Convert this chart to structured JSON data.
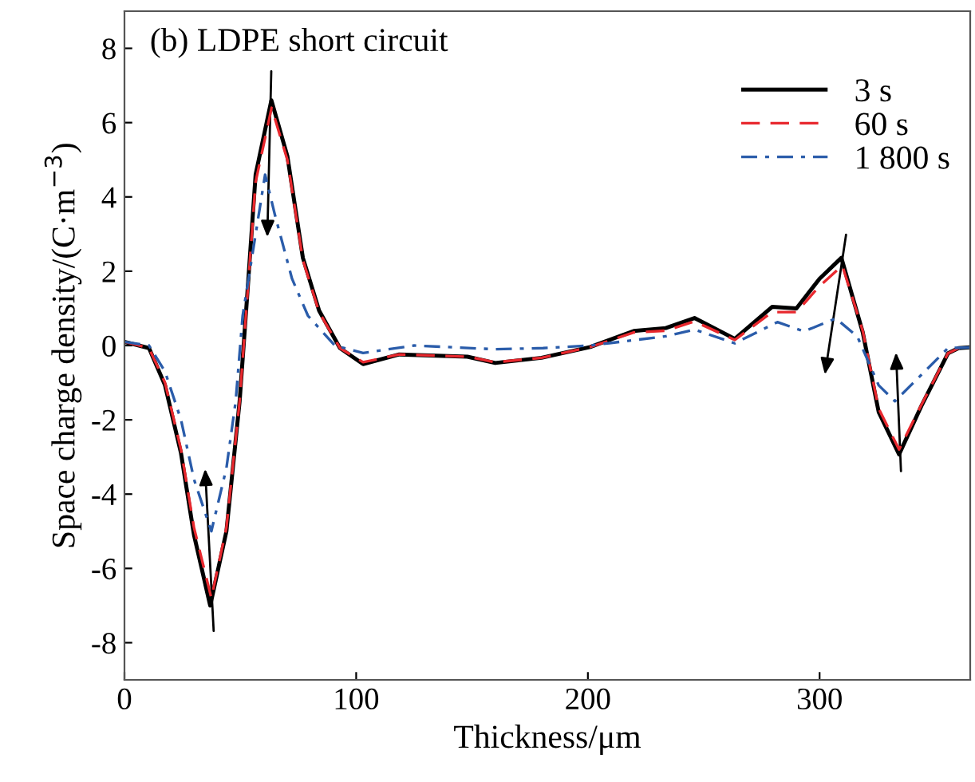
{
  "chart_data": {
    "type": "line",
    "title": "(b) LDPE short circuit",
    "xlabel": "Thickness/μm",
    "ylabel": "Space charge density/(C·m$^{−3}$)",
    "xlim": [
      0,
      365
    ],
    "ylim": [
      -9,
      9
    ],
    "xticks": [
      0,
      100,
      200,
      300
    ],
    "yticks": [
      -8,
      -6,
      -4,
      -2,
      0,
      2,
      4,
      6,
      8
    ],
    "grid": false,
    "legend": "top right",
    "series": [
      {
        "name": "3 s",
        "color": "#000000",
        "line_style": "solid",
        "x": [
          0,
          10.6,
          17.5,
          24.4,
          30,
          37,
          44,
          49.7,
          53,
          56.6,
          63.4,
          70.3,
          77,
          84,
          93,
          103,
          118.6,
          148,
          160,
          180,
          201,
          219.8,
          233.6,
          246,
          263.4,
          279.5,
          290,
          300,
          309.4,
          318.6,
          325.5,
          334.3,
          343.9,
          355.4,
          360,
          365
        ],
        "values": [
          0.1,
          -0.07,
          -1.07,
          -2.9,
          -5.1,
          -7.0,
          -5.0,
          -1.5,
          1.37,
          4.6,
          6.6,
          5.1,
          2.36,
          0.94,
          -0.07,
          -0.5,
          -0.24,
          -0.3,
          -0.47,
          -0.33,
          -0.04,
          0.39,
          0.47,
          0.74,
          0.18,
          1.04,
          1.0,
          1.8,
          2.36,
          0.36,
          -1.79,
          -2.93,
          -1.63,
          -0.21,
          -0.07,
          -0.05
        ]
      },
      {
        "name": "60 s",
        "color": "#e8282e",
        "line_style": "dashed",
        "x": [
          0,
          10.6,
          17.5,
          24.4,
          30,
          37.5,
          44,
          49.7,
          53,
          56.6,
          63.5,
          70.3,
          77,
          84,
          93,
          103,
          118.6,
          148,
          160,
          180,
          201,
          219.8,
          233.6,
          246,
          263.4,
          279.5,
          290,
          300,
          309.8,
          318.6,
          325.5,
          334.3,
          343.9,
          355.4,
          360,
          365
        ],
        "values": [
          0.1,
          -0.07,
          -1.0,
          -2.8,
          -4.9,
          -6.8,
          -4.9,
          -1.5,
          1.3,
          4.4,
          6.4,
          5.0,
          2.3,
          0.9,
          -0.07,
          -0.45,
          -0.24,
          -0.3,
          -0.45,
          -0.33,
          -0.04,
          0.35,
          0.4,
          0.65,
          0.15,
          0.9,
          0.9,
          1.6,
          2.15,
          0.4,
          -1.7,
          -2.8,
          -1.6,
          -0.21,
          -0.07,
          -0.05
        ]
      },
      {
        "name": "1 800 s",
        "color": "#2a5caa",
        "line_style": "dashdot",
        "x": [
          0,
          10.6,
          17.5,
          24.4,
          30,
          37.5,
          44,
          48,
          51,
          60.7,
          65,
          72.3,
          79.2,
          90.8,
          103,
          125,
          160,
          180.7,
          201,
          233.6,
          246,
          263.4,
          281.8,
          293.3,
          307,
          316.3,
          325.5,
          332.5,
          343.9,
          355.4,
          365
        ],
        "values": [
          0.1,
          0.0,
          -0.7,
          -2.0,
          -3.6,
          -5.0,
          -3.3,
          -1.5,
          0.8,
          4.6,
          3.5,
          1.8,
          0.8,
          0.0,
          -0.2,
          0.0,
          -0.1,
          -0.07,
          0.0,
          0.25,
          0.43,
          0.06,
          0.63,
          0.38,
          0.73,
          0.24,
          -1.07,
          -1.5,
          -0.79,
          -0.07,
          -0.05
        ]
      }
    ]
  }
}
